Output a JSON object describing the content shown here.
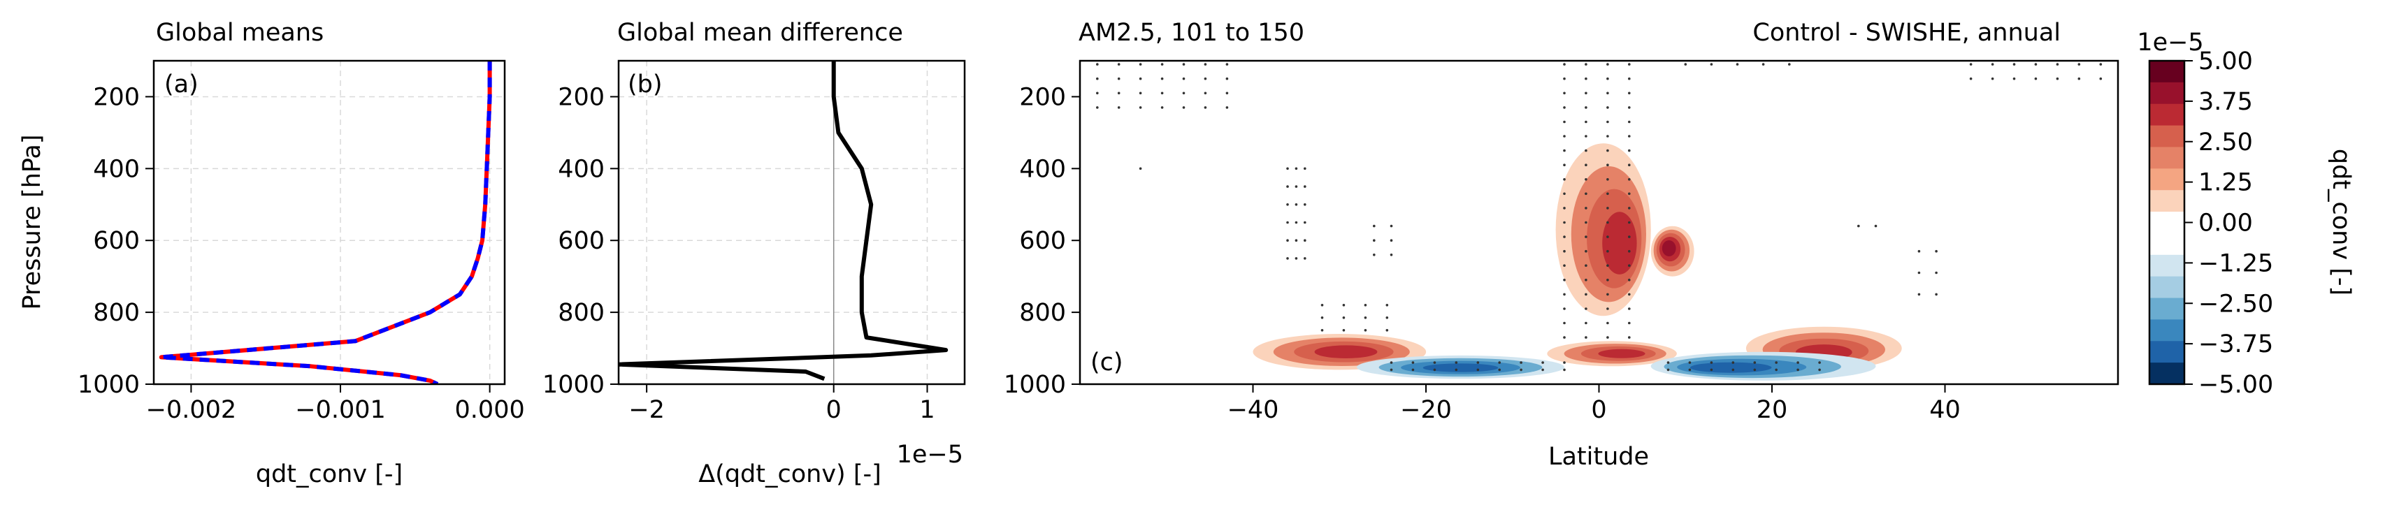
{
  "chart_data": [
    {
      "type": "line",
      "title": "Global means",
      "panel_label": "(a)",
      "xlabel": "qdt_conv [-]",
      "ylabel": "Pressure [hPa]",
      "xlim": [
        -0.00225,
        0.0001
      ],
      "ylim": [
        1000,
        100
      ],
      "xticks": [
        -0.002,
        -0.001,
        0.0
      ],
      "xticklabels": [
        "−0.002",
        "−0.001",
        "0.000"
      ],
      "yticks": [
        200,
        400,
        600,
        800,
        1000
      ],
      "yticklabels": [
        "200",
        "400",
        "600",
        "800",
        "1000"
      ],
      "grid": true,
      "series": [
        {
          "color": "#ff0000",
          "style": "solid",
          "x": [
            0.0,
            0.0,
            -1e-05,
            -2e-05,
            -3e-05,
            -5e-05,
            -8e-05,
            -0.00012,
            -0.0002,
            -0.0004,
            -0.0009,
            -0.0022,
            -0.0012,
            -0.0006,
            -0.0004,
            -0.00035
          ],
          "y": [
            100,
            200,
            300,
            400,
            500,
            600,
            650,
            700,
            750,
            800,
            880,
            925,
            950,
            975,
            990,
            1000
          ]
        },
        {
          "color": "#0000ff",
          "style": "dashed",
          "x": [
            0.0,
            0.0,
            -1e-05,
            -2e-05,
            -3e-05,
            -5e-05,
            -8e-05,
            -0.00012,
            -0.0002,
            -0.0004,
            -0.0009,
            -0.0022,
            -0.0012,
            -0.0006,
            -0.0004,
            -0.00035
          ],
          "y": [
            100,
            200,
            300,
            400,
            500,
            600,
            650,
            700,
            750,
            800,
            880,
            925,
            950,
            975,
            990,
            1000
          ]
        }
      ]
    },
    {
      "type": "line",
      "title": "Global mean difference",
      "panel_label": "(b)",
      "xlabel": "Δ(qdt_conv) [-]",
      "offset_text": "1e−5",
      "xlim": [
        -2.3,
        1.4
      ],
      "ylim": [
        1000,
        100
      ],
      "xticks": [
        -2,
        0,
        1
      ],
      "xticklabels": [
        "−2",
        "0",
        "1"
      ],
      "yticks": [
        200,
        400,
        600,
        800,
        1000
      ],
      "yticklabels": [
        "200",
        "400",
        "600",
        "800",
        "1000"
      ],
      "grid": true,
      "series": [
        {
          "color": "#000000",
          "style": "solid",
          "x": [
            0.0,
            0.0,
            0.05,
            0.3,
            0.4,
            0.35,
            0.3,
            0.3,
            0.35,
            1.2,
            0.4,
            -2.3,
            -0.3,
            -0.1
          ],
          "y": [
            100,
            200,
            300,
            400,
            500,
            600,
            700,
            800,
            870,
            905,
            920,
            945,
            965,
            985
          ]
        }
      ]
    },
    {
      "type": "heatmap",
      "title": "AM2.5, 101 to 150",
      "title_right": "Control - SWISHE, annual",
      "panel_label": "(c)",
      "xlabel": "Latitude",
      "xlim": [
        -60,
        60
      ],
      "ylim": [
        1000,
        100
      ],
      "xticks": [
        -40,
        -20,
        0,
        20,
        40
      ],
      "xticklabels": [
        "−40",
        "−20",
        "0",
        "20",
        "40"
      ],
      "yticks": [
        200,
        400,
        600,
        800,
        1000
      ],
      "yticklabels": [
        "200",
        "400",
        "600",
        "800",
        "1000"
      ],
      "colorbar": {
        "label": "qdt_conv [-]",
        "offset_text": "1e−5",
        "ticks": [
          5.0,
          3.75,
          2.5,
          1.25,
          0.0,
          -1.25,
          -2.5,
          -3.75,
          -5.0
        ],
        "ticklabels": [
          "5.00",
          "3.75",
          "2.50",
          "1.25",
          "0.00",
          "−1.25",
          "−2.50",
          "−3.75",
          "−5.00"
        ],
        "colors": [
          "#67001f",
          "#98112c",
          "#bb2a33",
          "#d6604d",
          "#e58267",
          "#f4a582",
          "#fbd3bb",
          "#ffffff",
          "#ffffff",
          "#d1e5f0",
          "#a5cde3",
          "#6aacd0",
          "#3a87be",
          "#1f63a8",
          "#053061"
        ]
      },
      "features": [
        {
          "sign": "positive",
          "lat": [
            -40,
            -20
          ],
          "p": [
            860,
            960
          ],
          "peak_lat": -29,
          "peak_p": 910
        },
        {
          "sign": "positive",
          "lat": [
            -5,
            6
          ],
          "p": [
            330,
            810
          ],
          "peak_lat": 3,
          "peak_p": 620
        },
        {
          "sign": "positive",
          "lat": [
            -6,
            9
          ],
          "p": [
            880,
            950
          ],
          "peak_lat": 3,
          "peak_p": 915
        },
        {
          "sign": "positive",
          "lat": [
            17,
            35
          ],
          "p": [
            840,
            960
          ],
          "peak_lat": 26,
          "peak_p": 915
        },
        {
          "sign": "positive",
          "lat": [
            6,
            11
          ],
          "p": [
            560,
            700
          ],
          "peak_lat": 8,
          "peak_p": 620
        },
        {
          "sign": "negative",
          "lat": [
            -28,
            -4
          ],
          "p": [
            920,
            985
          ],
          "peak_lat": -16,
          "peak_p": 955
        },
        {
          "sign": "negative",
          "lat": [
            6,
            32
          ],
          "p": [
            910,
            990
          ],
          "peak_lat": 14,
          "peak_p": 955
        }
      ]
    }
  ]
}
